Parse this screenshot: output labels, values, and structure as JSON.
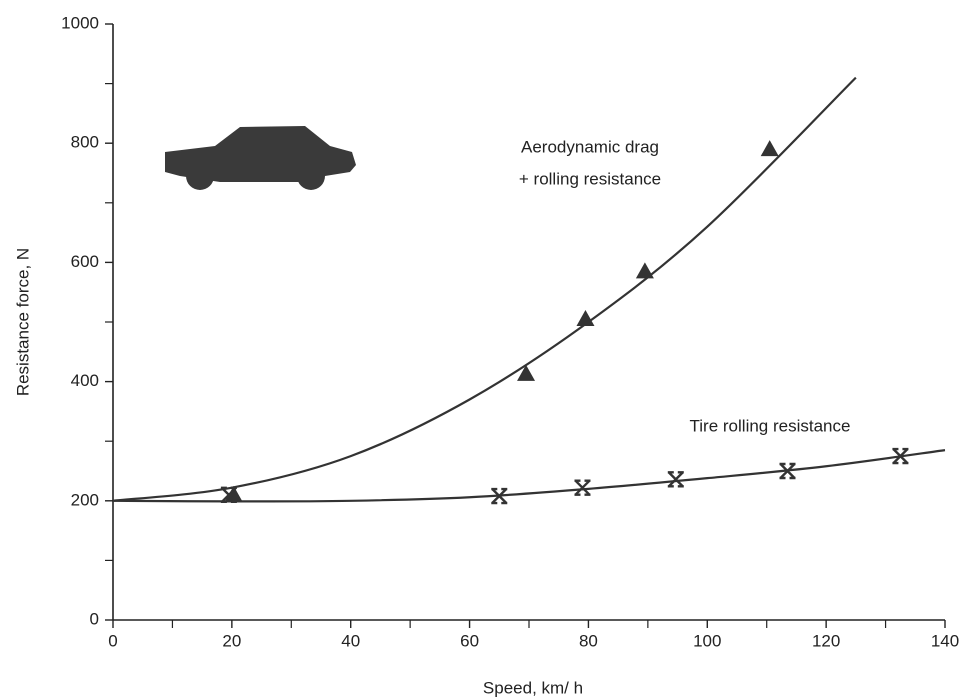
{
  "chart_data": {
    "type": "line",
    "xlabel": "Speed, km/ h",
    "ylabel": "Resistance force, N",
    "xlim": [
      0,
      140
    ],
    "xticks": [
      0,
      20,
      40,
      60,
      80,
      100,
      120,
      140
    ],
    "ylim": [
      0,
      1000
    ],
    "yticks": [
      0,
      200,
      400,
      600,
      800,
      1000
    ],
    "annotations": [
      "Aerodynamic drag",
      "+ rolling resistance",
      "Tire rolling resistance"
    ],
    "series": [
      {
        "marker": "triangle",
        "color": "#333333",
        "curve_x": [
          0,
          20,
          40,
          60,
          80,
          100,
          125
        ],
        "curve_values": [
          200,
          222,
          275,
          370,
          500,
          660,
          910
        ],
        "x": [
          20.3,
          69.5,
          79.5,
          89.5,
          110.5
        ],
        "values": [
          210,
          413,
          505,
          585,
          790
        ]
      },
      {
        "marker": "x",
        "color": "#333333",
        "curve_x": [
          0,
          20,
          40,
          60,
          80,
          100,
          120,
          140
        ],
        "curve_values": [
          200,
          199,
          200,
          206,
          220,
          238,
          258,
          285
        ],
        "x": [
          19.5,
          65,
          79,
          94.7,
          113.5,
          132.5
        ],
        "values": [
          210,
          208,
          222,
          236,
          250,
          275
        ]
      }
    ]
  }
}
